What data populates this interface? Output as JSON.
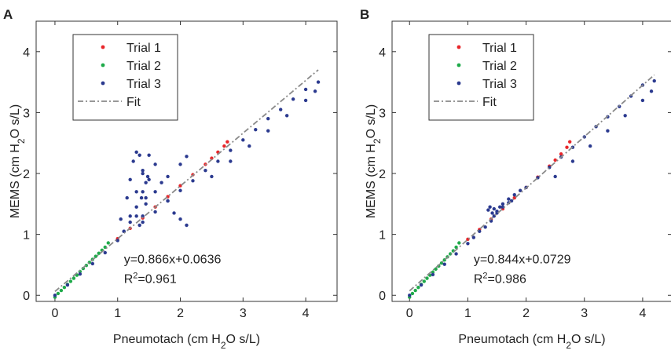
{
  "chart_data": [
    {
      "panel_label": "A",
      "type": "scatter",
      "xlabel": "Pneumotach (cm H2O s/L)",
      "ylabel": "MEMS (cm H2O s/L)",
      "xlim": [
        -0.3,
        4.5
      ],
      "ylim": [
        -0.1,
        4.5
      ],
      "xticks": [
        0,
        1,
        2,
        3,
        4
      ],
      "yticks": [
        0,
        1,
        2,
        3,
        4
      ],
      "legend_position": "top-left",
      "equation": "y=0.866x+0.0636",
      "r2": "0.961",
      "series": [
        {
          "name": "Trial 1",
          "color": "#e8262a",
          "x": [
            1.0,
            1.2,
            1.4,
            1.6,
            1.8,
            2.0,
            2.2,
            2.4,
            2.5,
            2.6,
            2.7,
            2.75
          ],
          "y": [
            0.93,
            1.1,
            1.27,
            1.45,
            1.62,
            1.8,
            1.98,
            2.15,
            2.25,
            2.35,
            2.45,
            2.52
          ]
        },
        {
          "name": "Trial 2",
          "color": "#1faa4a",
          "x": [
            0.0,
            0.05,
            0.1,
            0.15,
            0.2,
            0.25,
            0.3,
            0.35,
            0.4,
            0.45,
            0.5,
            0.55,
            0.6,
            0.65,
            0.7,
            0.75,
            0.8,
            0.85
          ],
          "y": [
            -0.03,
            0.03,
            0.08,
            0.13,
            0.18,
            0.23,
            0.28,
            0.33,
            0.39,
            0.44,
            0.49,
            0.54,
            0.59,
            0.64,
            0.69,
            0.74,
            0.79,
            0.86
          ]
        },
        {
          "name": "Trial 3",
          "color": "#2b3a8f",
          "x": [
            0.0,
            0.2,
            0.4,
            0.6,
            0.8,
            1.0,
            1.1,
            1.2,
            1.3,
            1.4,
            1.5,
            1.6,
            1.7,
            1.8,
            1.9,
            2.0,
            2.1,
            1.05,
            1.15,
            1.2,
            1.25,
            1.3,
            1.35,
            1.4,
            1.38,
            1.3,
            1.2,
            1.1,
            1.3,
            1.4,
            1.45,
            1.48,
            1.5,
            1.45,
            1.4,
            1.35,
            1.45,
            1.6,
            1.8,
            2.0,
            2.1,
            1.4,
            1.6,
            1.8,
            2.0,
            2.2,
            2.4,
            2.6,
            2.8,
            3.0,
            3.2,
            3.4,
            3.6,
            3.8,
            4.0,
            4.2,
            2.5,
            2.8,
            3.1,
            3.4,
            3.7,
            4.0,
            4.15
          ],
          "y": [
            0.0,
            0.17,
            0.35,
            0.52,
            0.7,
            0.9,
            1.05,
            1.3,
            1.7,
            2.05,
            2.3,
            2.15,
            1.85,
            1.55,
            1.35,
            1.25,
            1.15,
            1.25,
            1.6,
            1.9,
            2.2,
            2.35,
            2.3,
            2.0,
            1.6,
            1.3,
            1.2,
            1.05,
            1.45,
            1.7,
            1.85,
            1.95,
            1.9,
            1.6,
            1.3,
            1.15,
            1.5,
            1.7,
            1.95,
            2.15,
            2.28,
            1.2,
            1.37,
            1.55,
            1.72,
            1.88,
            2.05,
            2.2,
            2.38,
            2.55,
            2.72,
            2.9,
            3.05,
            3.22,
            3.38,
            3.5,
            1.95,
            2.2,
            2.45,
            2.7,
            2.95,
            3.2,
            3.35
          ]
        }
      ],
      "fit": {
        "name": "Fit",
        "slope": 0.866,
        "intercept": 0.0636,
        "x_range": [
          0,
          4.2
        ]
      }
    },
    {
      "panel_label": "B",
      "type": "scatter",
      "xlabel": "Pneumotach (cm H2O s/L)",
      "ylabel": "MEMS (cm H2O s/L)",
      "xlim": [
        -0.3,
        4.5
      ],
      "ylim": [
        -0.1,
        4.5
      ],
      "xticks": [
        0,
        1,
        2,
        3,
        4
      ],
      "yticks": [
        0,
        1,
        2,
        3,
        4
      ],
      "legend_position": "top-left",
      "equation": "y=0.844x+0.0729",
      "r2": "0.986",
      "series": [
        {
          "name": "Trial 1",
          "color": "#e8262a",
          "x": [
            1.0,
            1.2,
            1.4,
            1.6,
            1.8,
            2.0,
            2.2,
            2.4,
            2.5,
            2.6,
            2.7,
            2.75
          ],
          "y": [
            0.92,
            1.08,
            1.25,
            1.42,
            1.6,
            1.77,
            1.94,
            2.12,
            2.22,
            2.32,
            2.43,
            2.52
          ]
        },
        {
          "name": "Trial 2",
          "color": "#1faa4a",
          "x": [
            0.0,
            0.05,
            0.1,
            0.15,
            0.2,
            0.25,
            0.3,
            0.35,
            0.4,
            0.45,
            0.5,
            0.55,
            0.6,
            0.65,
            0.7,
            0.75,
            0.8,
            0.85
          ],
          "y": [
            -0.03,
            0.03,
            0.08,
            0.13,
            0.18,
            0.23,
            0.28,
            0.33,
            0.38,
            0.43,
            0.48,
            0.53,
            0.58,
            0.63,
            0.68,
            0.73,
            0.79,
            0.86
          ]
        },
        {
          "name": "Trial 3",
          "color": "#2b3a8f",
          "x": [
            0.0,
            0.2,
            0.4,
            0.6,
            0.8,
            1.0,
            1.1,
            1.2,
            1.3,
            1.4,
            1.45,
            1.5,
            1.55,
            1.6,
            1.7,
            1.8,
            1.9,
            1.35,
            1.38,
            1.42,
            1.45,
            1.5,
            1.6,
            1.7,
            1.75,
            2.0,
            2.2,
            2.4,
            2.6,
            2.8,
            3.0,
            3.2,
            3.4,
            3.6,
            3.8,
            4.0,
            4.2,
            2.5,
            2.8,
            3.1,
            3.4,
            3.7,
            4.0,
            4.15
          ],
          "y": [
            0.0,
            0.17,
            0.34,
            0.51,
            0.68,
            0.85,
            0.95,
            1.05,
            1.12,
            1.22,
            1.3,
            1.38,
            1.45,
            1.5,
            1.58,
            1.65,
            1.72,
            1.4,
            1.45,
            1.35,
            1.42,
            1.35,
            1.45,
            1.52,
            1.55,
            1.77,
            1.93,
            2.1,
            2.27,
            2.43,
            2.6,
            2.77,
            2.93,
            3.1,
            3.27,
            3.45,
            3.52,
            1.95,
            2.2,
            2.45,
            2.7,
            2.95,
            3.2,
            3.35
          ]
        }
      ],
      "fit": {
        "name": "Fit",
        "slope": 0.844,
        "intercept": 0.0729,
        "x_range": [
          0,
          4.2
        ]
      }
    }
  ]
}
